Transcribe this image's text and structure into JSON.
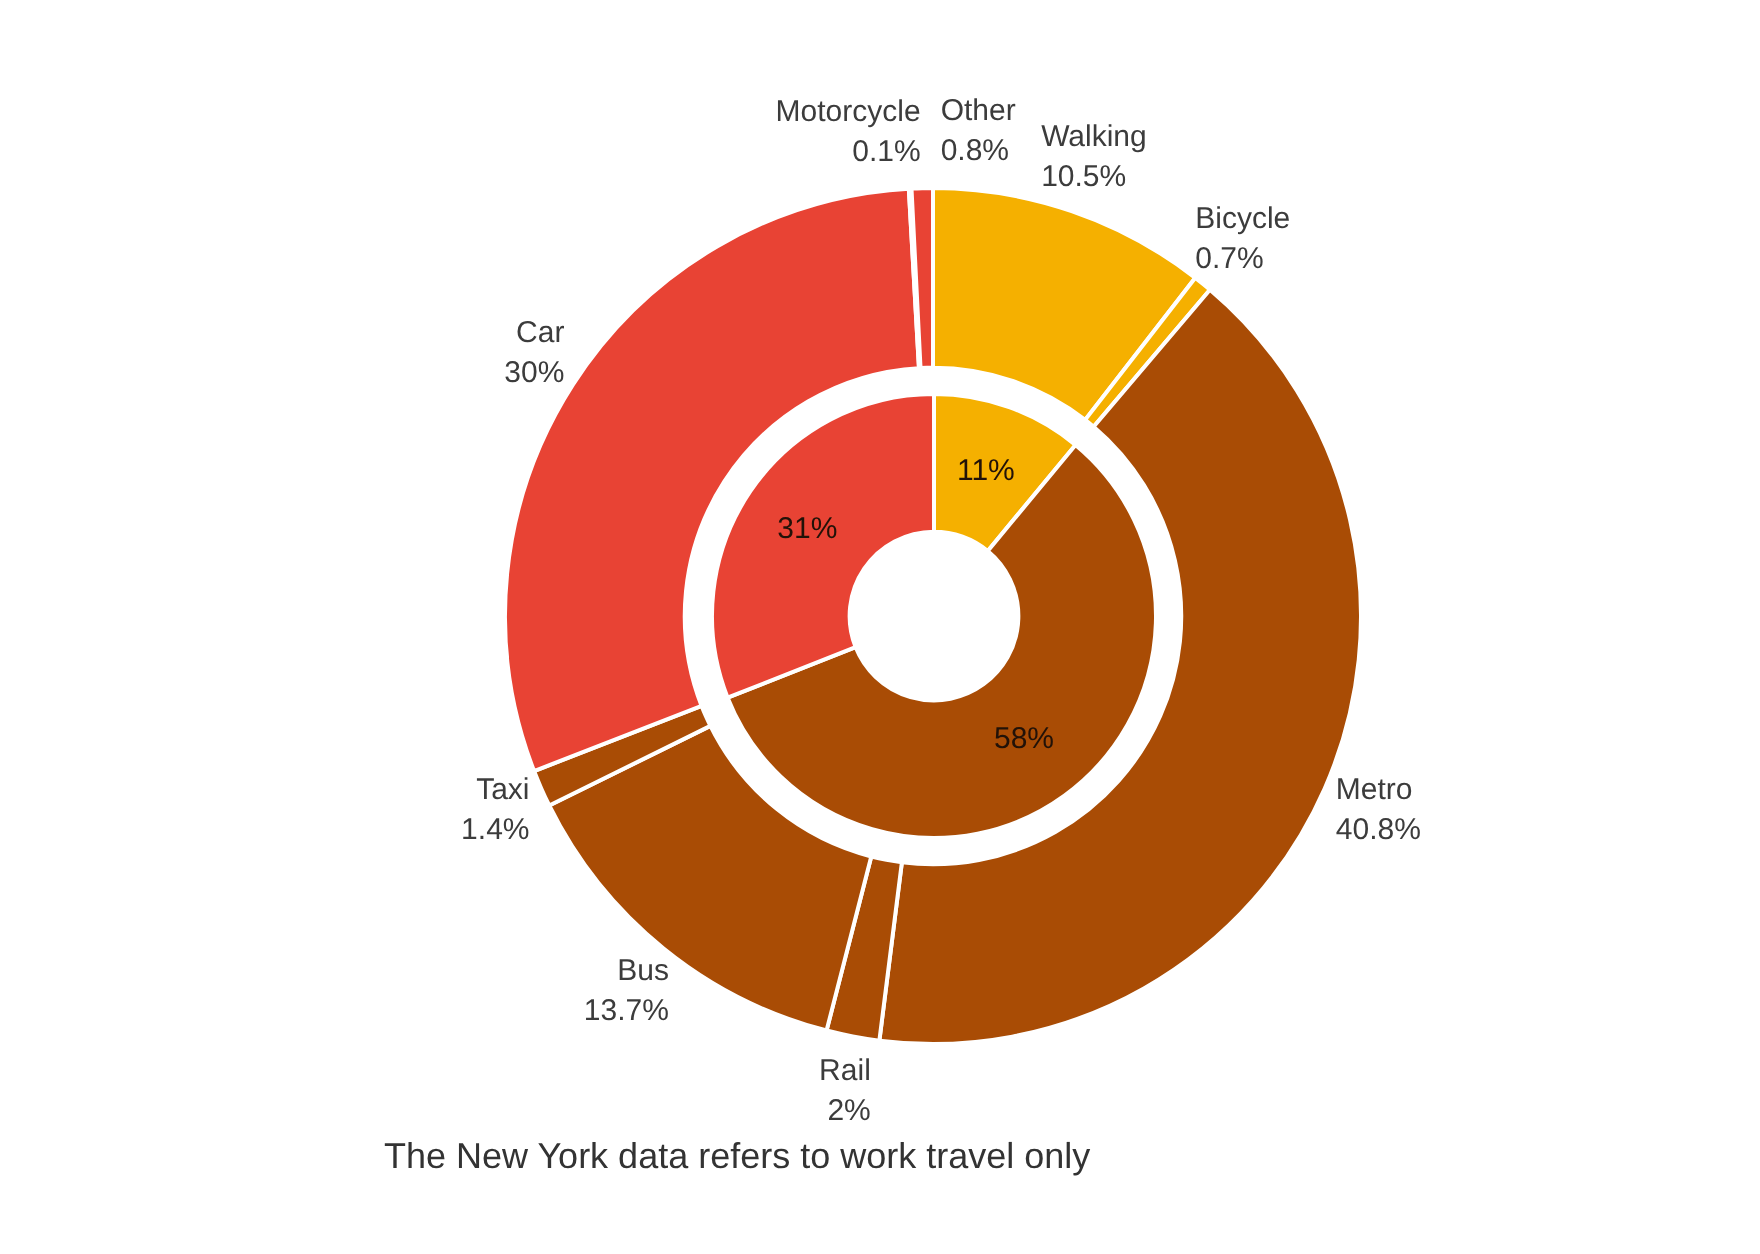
{
  "chart_data": [
    {
      "type": "donut",
      "categories": [
        "Walking",
        "Bicycle",
        "Metro",
        "Rail",
        "Bus",
        "Taxi",
        "Car",
        "Motorcycle",
        "Other"
      ],
      "values": [
        10.5,
        0.7,
        40.8,
        2,
        13.7,
        1.4,
        30,
        0.1,
        0.8
      ],
      "colors": [
        "#f5b000",
        "#f5b000",
        "#a94c05",
        "#a94c05",
        "#a94c05",
        "#a94c05",
        "#e84334",
        "#4f86b8",
        "#e84334"
      ],
      "value_labels": [
        "10.5%",
        "0.7%",
        "40.8%",
        "2%",
        "13.7%",
        "1.4%",
        "30%",
        "0.1%",
        "0.8%"
      ],
      "annotations": [
        "The New York data refers to work travel only"
      ]
    },
    {
      "type": "donut",
      "categories": [
        null,
        null,
        null
      ],
      "values": [
        11,
        58,
        31
      ],
      "colors": [
        "#f5b000",
        "#a94c05",
        "#e84334"
      ],
      "value_labels": [
        "11%",
        "58%",
        "31%"
      ]
    }
  ]
}
